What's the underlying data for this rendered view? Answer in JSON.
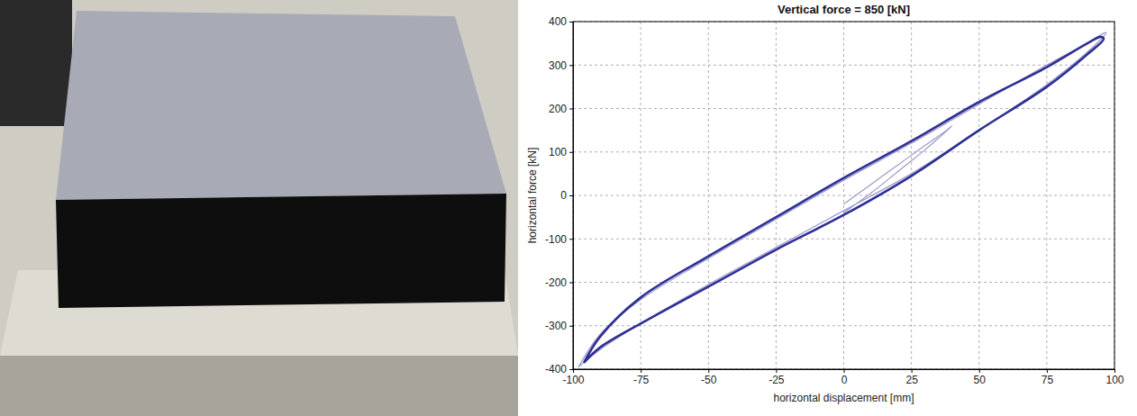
{
  "chart_data": {
    "type": "line",
    "title": "Vertical force = 850 [kN]",
    "x_label": "horizontal displacement [mm]",
    "y_label": "horizontal force [kN]",
    "xlim": [
      -100,
      100
    ],
    "xticks": [
      -100,
      -75,
      -50,
      -25,
      0,
      25,
      50,
      75,
      100
    ],
    "ylim": [
      -400,
      400
    ],
    "yticks": [
      -400,
      -300,
      -200,
      -100,
      0,
      100,
      200,
      300,
      400
    ],
    "grid": true,
    "series": [
      {
        "color": "#9a9ac8",
        "line_style": "solid",
        "x": [
          0,
          10,
          20,
          30,
          40,
          38,
          30,
          20,
          10,
          0,
          null,
          -98,
          -90,
          -75,
          -50,
          -25,
          0,
          25,
          50,
          75,
          90,
          97,
          95,
          90,
          75,
          50,
          25,
          0,
          -25,
          -50,
          -75,
          -90,
          -98
        ],
        "values": [
          -40,
          5,
          55,
          105,
          160,
          150,
          115,
          70,
          25,
          -20,
          null,
          -395,
          -355,
          -295,
          -205,
          -120,
          -35,
          50,
          150,
          255,
          330,
          375,
          370,
          350,
          300,
          210,
          120,
          35,
          -55,
          -145,
          -240,
          -320,
          -395
        ]
      },
      {
        "color": "#2e2e96",
        "line_style": "solid",
        "x": [
          -96,
          -90,
          -75,
          -50,
          -25,
          0,
          25,
          50,
          75,
          90,
          96,
          95,
          90,
          75,
          50,
          25,
          0,
          -25,
          -50,
          -75,
          -90,
          -96
        ],
        "values": [
          -385,
          -350,
          -295,
          -210,
          -125,
          -45,
          45,
          150,
          250,
          325,
          360,
          365,
          350,
          295,
          215,
          125,
          40,
          -50,
          -140,
          -235,
          -325,
          -385
        ]
      }
    ]
  }
}
